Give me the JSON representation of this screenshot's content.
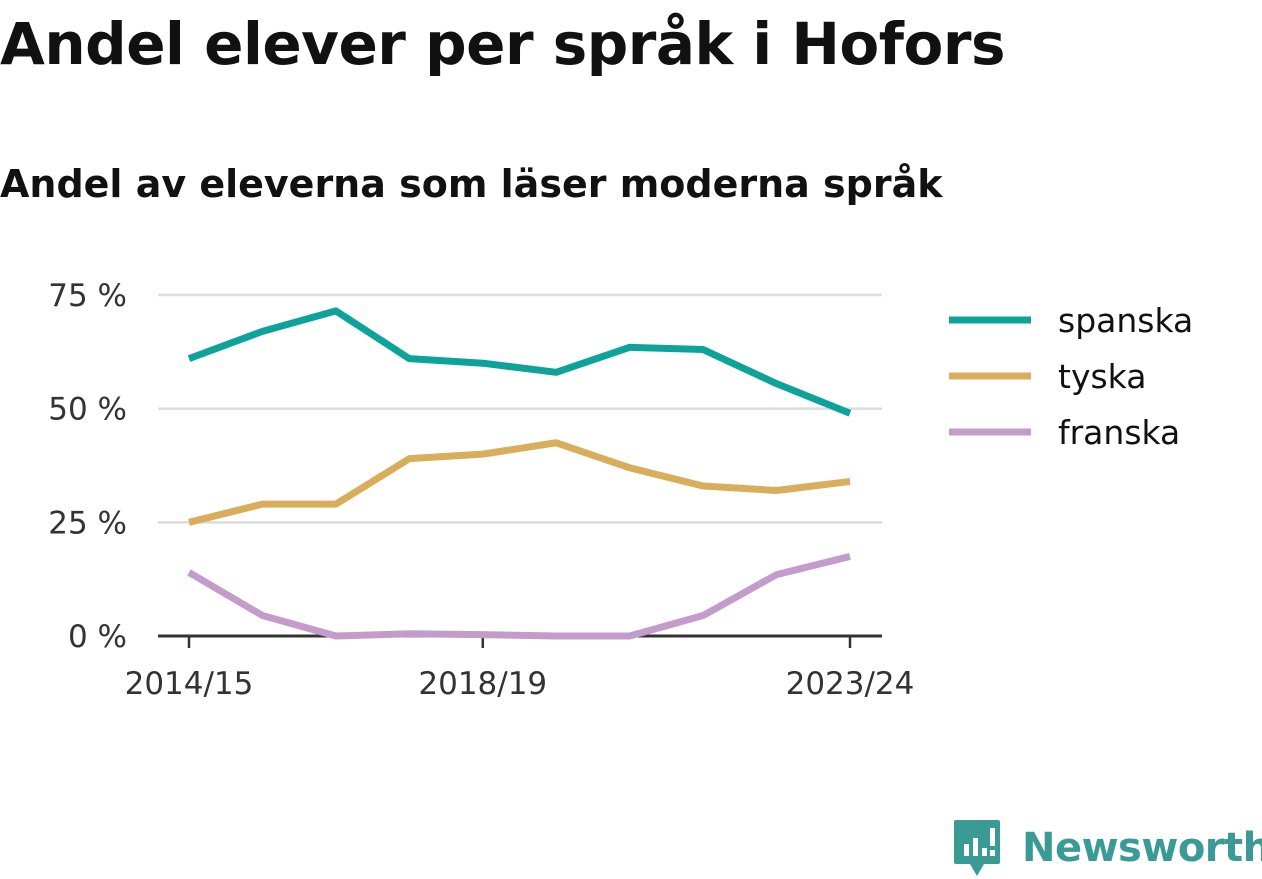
{
  "title": "Andel elever per språk i Hofors",
  "subtitle": "Andel av eleverna som läser moderna språk",
  "brand": {
    "name": "Newsworthy",
    "color": "#3a9a96"
  },
  "chart_data": {
    "type": "line",
    "x": [
      "2014/15",
      "2015/16",
      "2016/17",
      "2017/18",
      "2018/19",
      "2019/20",
      "2020/21",
      "2021/22",
      "2022/23",
      "2023/24"
    ],
    "x_tick_labels": [
      "2014/15",
      "2018/19",
      "2023/24"
    ],
    "y_ticks": [
      0,
      25,
      50,
      75
    ],
    "y_tick_labels": [
      "0 %",
      "25 %",
      "50 %",
      "75 %"
    ],
    "ylim": [
      0,
      75
    ],
    "grid": true,
    "legend_position": "right",
    "series": [
      {
        "name": "spanska",
        "color": "#0ea39a",
        "values": [
          61,
          67,
          71.5,
          61,
          60,
          58,
          63.5,
          63,
          55.5,
          49
        ]
      },
      {
        "name": "tyska",
        "color": "#d9ad5b",
        "values": [
          25,
          29,
          29,
          39,
          40,
          42.5,
          37,
          33,
          32,
          34
        ]
      },
      {
        "name": "franska",
        "color": "#c49ccc",
        "values": [
          14,
          4.5,
          0,
          0.5,
          0.3,
          0,
          0,
          4.5,
          13.5,
          17.5
        ]
      }
    ]
  }
}
